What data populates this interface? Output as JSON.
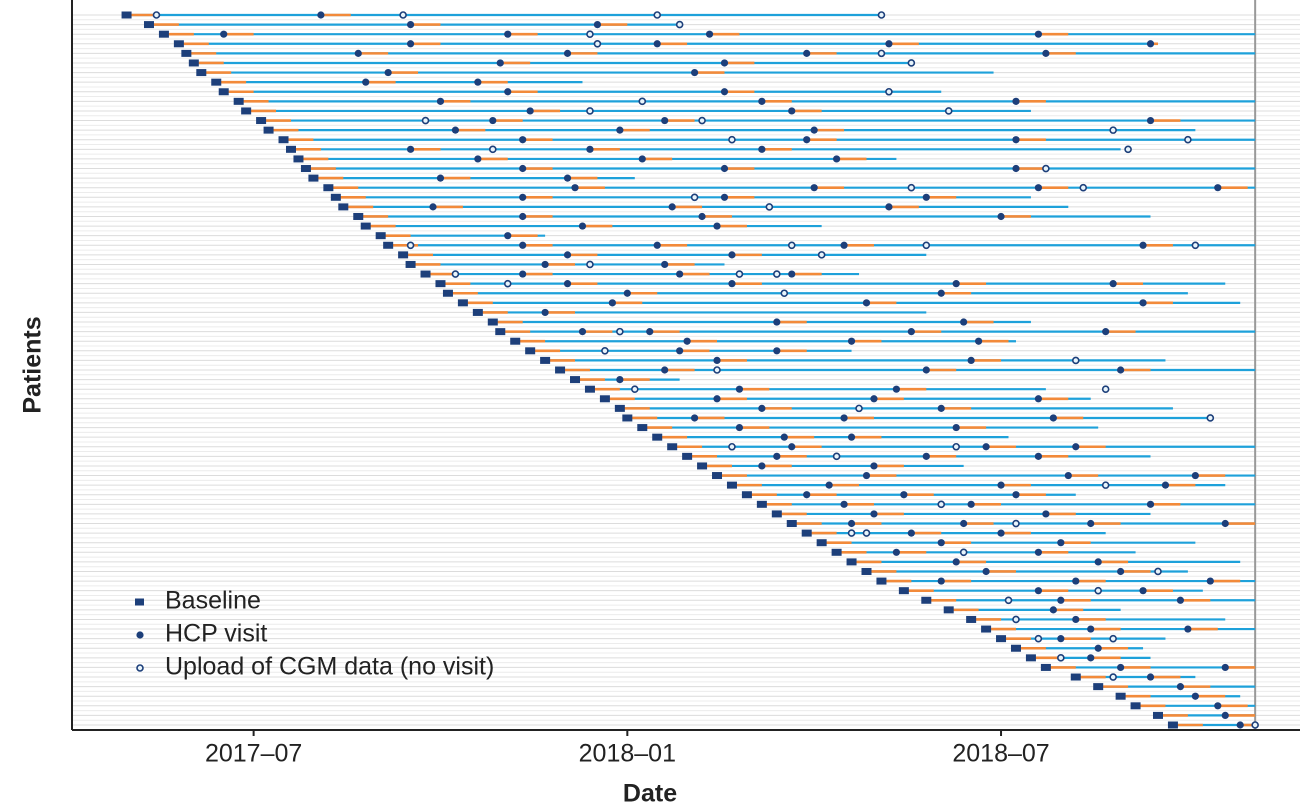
{
  "chart_data": {
    "type": "swimmer",
    "xlabel": "Date",
    "ylabel": "Patients",
    "xlim": [
      2017.257,
      2018.9
    ],
    "xticks": [
      {
        "value": 2017.5,
        "label": "2017–07"
      },
      {
        "value": 2018.0,
        "label": "2018–01"
      },
      {
        "value": 2018.5,
        "label": "2018–07"
      }
    ],
    "reference_line": 2018.84,
    "legend": [
      "Baseline",
      "HCP visit",
      "Upload of CGM data (no visit)"
    ],
    "legend_position": "lower left",
    "colors": {
      "line": "#1ea1da",
      "marker": "#1d3f7a",
      "period": "#f28a3a"
    },
    "patients": [
      {
        "baseline": 2017.33,
        "end": 2018.34,
        "visits": [
          2017.59
        ],
        "uploads": [
          2017.37,
          2017.7,
          2018.04,
          2018.34
        ]
      },
      {
        "baseline": 2017.36,
        "end": 2018.07,
        "visits": [
          2017.71,
          2017.96
        ],
        "uploads": [
          2018.07
        ]
      },
      {
        "baseline": 2017.38,
        "end": 2018.84,
        "visits": [
          2017.46,
          2017.84,
          2018.11,
          2018.55
        ],
        "uploads": [
          2017.95
        ]
      },
      {
        "baseline": 2017.4,
        "end": 2018.71,
        "visits": [
          2017.71,
          2018.04,
          2018.35,
          2018.7
        ],
        "uploads": [
          2017.96
        ]
      },
      {
        "baseline": 2017.41,
        "end": 2018.84,
        "visits": [
          2017.64,
          2017.92,
          2018.24,
          2018.56
        ],
        "uploads": [
          2018.34
        ]
      },
      {
        "baseline": 2017.42,
        "end": 2018.38,
        "visits": [
          2017.83,
          2018.13
        ],
        "uploads": [
          2018.38
        ]
      },
      {
        "baseline": 2017.43,
        "end": 2018.49,
        "visits": [
          2017.68,
          2018.09
        ],
        "uploads": []
      },
      {
        "baseline": 2017.45,
        "end": 2017.94,
        "visits": [
          2017.65,
          2017.8
        ],
        "uploads": []
      },
      {
        "baseline": 2017.46,
        "end": 2018.42,
        "visits": [
          2017.84,
          2018.13
        ],
        "uploads": [
          2018.35
        ]
      },
      {
        "baseline": 2017.48,
        "end": 2018.84,
        "visits": [
          2017.75,
          2018.18,
          2018.52
        ],
        "uploads": [
          2018.02
        ]
      },
      {
        "baseline": 2017.49,
        "end": 2018.54,
        "visits": [
          2017.87,
          2018.22
        ],
        "uploads": [
          2017.95,
          2018.43
        ]
      },
      {
        "baseline": 2017.51,
        "end": 2018.84,
        "visits": [
          2017.82,
          2018.05,
          2018.7
        ],
        "uploads": [
          2017.73,
          2018.1
        ]
      },
      {
        "baseline": 2017.52,
        "end": 2018.76,
        "visits": [
          2017.77,
          2017.99,
          2018.25
        ],
        "uploads": [
          2018.65
        ]
      },
      {
        "baseline": 2017.54,
        "end": 2018.84,
        "visits": [
          2017.86,
          2018.24,
          2018.52
        ],
        "uploads": [
          2018.14,
          2018.75
        ]
      },
      {
        "baseline": 2017.55,
        "end": 2018.66,
        "visits": [
          2017.71,
          2017.95,
          2018.18
        ],
        "uploads": [
          2017.82,
          2018.67
        ]
      },
      {
        "baseline": 2017.56,
        "end": 2018.36,
        "visits": [
          2017.8,
          2018.02,
          2018.28
        ],
        "uploads": []
      },
      {
        "baseline": 2017.57,
        "end": 2018.84,
        "visits": [
          2017.86,
          2018.13,
          2018.52
        ],
        "uploads": [
          2018.56
        ]
      },
      {
        "baseline": 2017.58,
        "end": 2018.01,
        "visits": [
          2017.75,
          2017.92
        ],
        "uploads": []
      },
      {
        "baseline": 2017.6,
        "end": 2018.84,
        "visits": [
          2017.93,
          2018.25,
          2018.55,
          2018.79
        ],
        "uploads": [
          2018.38,
          2018.61
        ]
      },
      {
        "baseline": 2017.61,
        "end": 2018.54,
        "visits": [
          2017.86,
          2018.13,
          2018.4
        ],
        "uploads": [
          2018.09
        ]
      },
      {
        "baseline": 2017.62,
        "end": 2018.59,
        "visits": [
          2017.74,
          2018.06,
          2018.35
        ],
        "uploads": [
          2018.19
        ]
      },
      {
        "baseline": 2017.64,
        "end": 2018.7,
        "visits": [
          2017.86,
          2018.1,
          2018.5
        ],
        "uploads": []
      },
      {
        "baseline": 2017.65,
        "end": 2018.26,
        "visits": [
          2017.94,
          2018.12
        ],
        "uploads": []
      },
      {
        "baseline": 2017.67,
        "end": 2017.89,
        "visits": [
          2017.84
        ],
        "uploads": []
      },
      {
        "baseline": 2017.68,
        "end": 2018.84,
        "visits": [
          2017.86,
          2018.04,
          2018.29,
          2018.69
        ],
        "uploads": [
          2017.71,
          2018.22,
          2018.4,
          2018.76
        ]
      },
      {
        "baseline": 2017.7,
        "end": 2018.4,
        "visits": [
          2017.92,
          2018.14
        ],
        "uploads": [
          2018.26
        ]
      },
      {
        "baseline": 2017.71,
        "end": 2018.13,
        "visits": [
          2017.89,
          2018.05
        ],
        "uploads": [
          2017.95
        ]
      },
      {
        "baseline": 2017.73,
        "end": 2018.31,
        "visits": [
          2017.86,
          2018.07,
          2018.22
        ],
        "uploads": [
          2017.77,
          2018.15,
          2018.2
        ]
      },
      {
        "baseline": 2017.75,
        "end": 2018.8,
        "visits": [
          2017.92,
          2018.14,
          2018.44,
          2018.65
        ],
        "uploads": [
          2017.84
        ]
      },
      {
        "baseline": 2017.76,
        "end": 2018.75,
        "visits": [
          2018.0,
          2018.42
        ],
        "uploads": [
          2018.21
        ]
      },
      {
        "baseline": 2017.78,
        "end": 2018.82,
        "visits": [
          2017.98,
          2018.32,
          2018.69
        ],
        "uploads": []
      },
      {
        "baseline": 2017.8,
        "end": 2018.4,
        "visits": [
          2017.89
        ],
        "uploads": []
      },
      {
        "baseline": 2017.82,
        "end": 2018.54,
        "visits": [
          2018.2,
          2018.45
        ],
        "uploads": []
      },
      {
        "baseline": 2017.83,
        "end": 2018.84,
        "visits": [
          2017.94,
          2018.03,
          2018.38,
          2018.64
        ],
        "uploads": [
          2017.99
        ]
      },
      {
        "baseline": 2017.85,
        "end": 2018.52,
        "visits": [
          2018.08,
          2018.3,
          2018.47
        ],
        "uploads": []
      },
      {
        "baseline": 2017.87,
        "end": 2018.3,
        "visits": [
          2018.07,
          2018.2
        ],
        "uploads": [
          2017.97
        ]
      },
      {
        "baseline": 2017.89,
        "end": 2018.72,
        "visits": [
          2018.12,
          2018.46
        ],
        "uploads": [
          2018.6
        ]
      },
      {
        "baseline": 2017.91,
        "end": 2018.84,
        "visits": [
          2018.05,
          2018.4,
          2018.66
        ],
        "uploads": [
          2018.12
        ]
      },
      {
        "baseline": 2017.93,
        "end": 2018.07,
        "visits": [
          2017.99
        ],
        "uploads": []
      },
      {
        "baseline": 2017.95,
        "end": 2018.56,
        "visits": [
          2018.15,
          2018.36
        ],
        "uploads": [
          2018.01,
          2018.64
        ]
      },
      {
        "baseline": 2017.97,
        "end": 2018.62,
        "visits": [
          2018.12,
          2018.33,
          2018.55
        ],
        "uploads": []
      },
      {
        "baseline": 2017.99,
        "end": 2018.73,
        "visits": [
          2018.18,
          2018.42
        ],
        "uploads": [
          2018.31
        ]
      },
      {
        "baseline": 2018.0,
        "end": 2018.78,
        "visits": [
          2018.09,
          2018.29,
          2018.57
        ],
        "uploads": [
          2018.78
        ]
      },
      {
        "baseline": 2018.02,
        "end": 2018.63,
        "visits": [
          2018.15,
          2018.44
        ],
        "uploads": []
      },
      {
        "baseline": 2018.04,
        "end": 2018.51,
        "visits": [
          2018.21,
          2018.3
        ],
        "uploads": []
      },
      {
        "baseline": 2018.06,
        "end": 2018.84,
        "visits": [
          2018.22,
          2018.48,
          2018.6
        ],
        "uploads": [
          2018.14,
          2018.44
        ]
      },
      {
        "baseline": 2018.08,
        "end": 2018.7,
        "visits": [
          2018.2,
          2018.4,
          2018.55
        ],
        "uploads": [
          2018.28
        ]
      },
      {
        "baseline": 2018.1,
        "end": 2018.45,
        "visits": [
          2018.18,
          2018.33
        ],
        "uploads": []
      },
      {
        "baseline": 2018.12,
        "end": 2018.84,
        "visits": [
          2018.32,
          2018.59,
          2018.76
        ],
        "uploads": []
      },
      {
        "baseline": 2018.14,
        "end": 2018.8,
        "visits": [
          2018.27,
          2018.5,
          2018.72
        ],
        "uploads": [
          2018.64
        ]
      },
      {
        "baseline": 2018.16,
        "end": 2018.6,
        "visits": [
          2018.24,
          2018.37,
          2018.52
        ],
        "uploads": []
      },
      {
        "baseline": 2018.18,
        "end": 2018.84,
        "visits": [
          2018.29,
          2018.46,
          2018.7
        ],
        "uploads": [
          2018.42
        ]
      },
      {
        "baseline": 2018.2,
        "end": 2018.7,
        "visits": [
          2018.33,
          2018.56
        ],
        "uploads": []
      },
      {
        "baseline": 2018.22,
        "end": 2018.84,
        "visits": [
          2018.3,
          2018.45,
          2018.62,
          2018.8
        ],
        "uploads": [
          2018.52
        ]
      },
      {
        "baseline": 2018.24,
        "end": 2018.64,
        "visits": [
          2018.38,
          2018.5
        ],
        "uploads": [
          2018.3,
          2018.32
        ]
      },
      {
        "baseline": 2018.26,
        "end": 2018.76,
        "visits": [
          2018.42,
          2018.58
        ],
        "uploads": []
      },
      {
        "baseline": 2018.28,
        "end": 2018.68,
        "visits": [
          2018.36,
          2018.55
        ],
        "uploads": [
          2018.45
        ]
      },
      {
        "baseline": 2018.3,
        "end": 2018.82,
        "visits": [
          2018.44,
          2018.63
        ],
        "uploads": []
      },
      {
        "baseline": 2018.32,
        "end": 2018.75,
        "visits": [
          2018.48,
          2018.66
        ],
        "uploads": [
          2018.71
        ]
      },
      {
        "baseline": 2018.34,
        "end": 2018.84,
        "visits": [
          2018.42,
          2018.6,
          2018.78
        ],
        "uploads": []
      },
      {
        "baseline": 2018.37,
        "end": 2018.77,
        "visits": [
          2018.55,
          2018.69
        ],
        "uploads": [
          2018.63
        ]
      },
      {
        "baseline": 2018.4,
        "end": 2018.84,
        "visits": [
          2018.58,
          2018.74
        ],
        "uploads": [
          2018.51
        ]
      },
      {
        "baseline": 2018.43,
        "end": 2018.66,
        "visits": [
          2018.57
        ],
        "uploads": []
      },
      {
        "baseline": 2018.46,
        "end": 2018.8,
        "visits": [
          2018.6
        ],
        "uploads": [
          2018.52
        ]
      },
      {
        "baseline": 2018.48,
        "end": 2018.84,
        "visits": [
          2018.62,
          2018.75
        ],
        "uploads": []
      },
      {
        "baseline": 2018.5,
        "end": 2018.72,
        "visits": [
          2018.58
        ],
        "uploads": [
          2018.55,
          2018.65
        ]
      },
      {
        "baseline": 2018.52,
        "end": 2018.69,
        "visits": [
          2018.63
        ],
        "uploads": []
      },
      {
        "baseline": 2018.54,
        "end": 2018.7,
        "visits": [
          2018.62
        ],
        "uploads": [
          2018.58
        ]
      },
      {
        "baseline": 2018.56,
        "end": 2018.84,
        "visits": [
          2018.66,
          2018.8
        ],
        "uploads": []
      },
      {
        "baseline": 2018.6,
        "end": 2018.76,
        "visits": [
          2018.7
        ],
        "uploads": [
          2018.65
        ]
      },
      {
        "baseline": 2018.63,
        "end": 2018.84,
        "visits": [
          2018.74
        ],
        "uploads": []
      },
      {
        "baseline": 2018.66,
        "end": 2018.82,
        "visits": [
          2018.76
        ],
        "uploads": []
      },
      {
        "baseline": 2018.68,
        "end": 2018.84,
        "visits": [
          2018.79
        ],
        "uploads": []
      },
      {
        "baseline": 2018.71,
        "end": 2018.84,
        "visits": [
          2018.8
        ],
        "uploads": []
      },
      {
        "baseline": 2018.73,
        "end": 2018.84,
        "visits": [
          2018.82
        ],
        "uploads": [
          2018.84
        ]
      }
    ]
  }
}
